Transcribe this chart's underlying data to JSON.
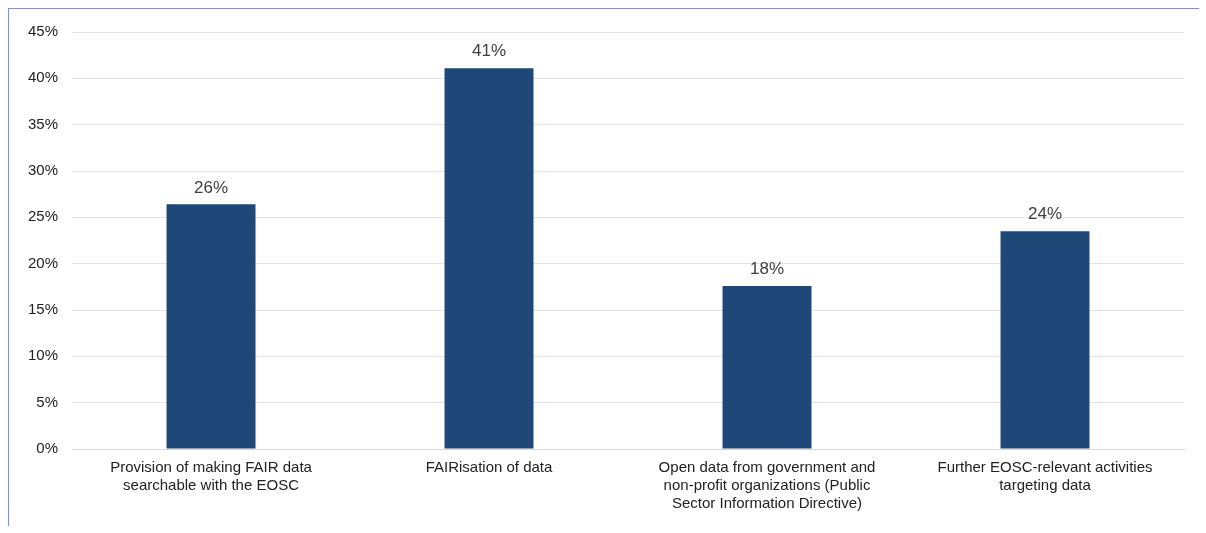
{
  "chart_data": {
    "type": "bar",
    "categories": [
      "Provision of making FAIR data searchable with the EOSC",
      "FAIRisation of data",
      "Open data from government and non-profit organizations (Public Sector Information Directive)",
      "Further EOSC-relevant activities targeting data"
    ],
    "values": [
      26.4,
      41.1,
      17.6,
      23.5
    ],
    "value_labels": [
      "26%",
      "41%",
      "18%",
      "24%"
    ],
    "color": "#1f4778",
    "ylim": [
      0,
      45
    ],
    "yticks": [
      {
        "value": 0,
        "label": "0%"
      },
      {
        "value": 5,
        "label": "5%"
      },
      {
        "value": 10,
        "label": "10%"
      },
      {
        "value": 15,
        "label": "15%"
      },
      {
        "value": 20,
        "label": "20%"
      },
      {
        "value": 25,
        "label": "25%"
      },
      {
        "value": 30,
        "label": "30%"
      },
      {
        "value": 35,
        "label": "35%"
      },
      {
        "value": 40,
        "label": "40%"
      },
      {
        "value": 45,
        "label": "45%"
      }
    ],
    "grid": "y",
    "legend": false
  }
}
